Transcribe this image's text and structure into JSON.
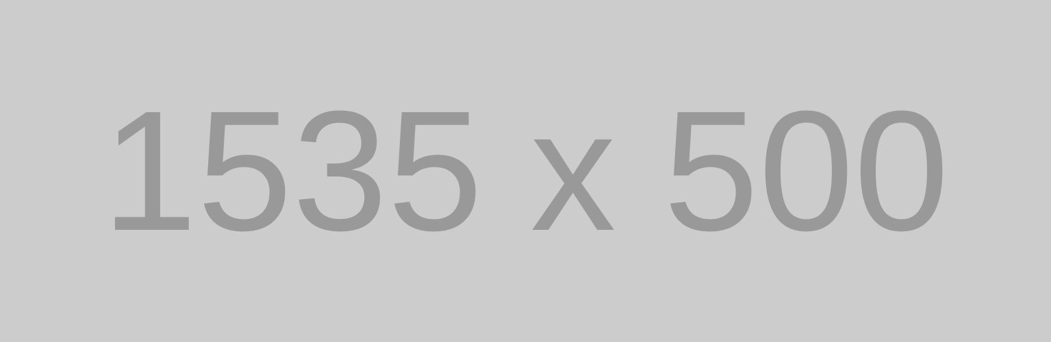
{
  "placeholder": {
    "label": "1535 x 500",
    "background_color": "#cccccc",
    "text_color": "#999999"
  }
}
